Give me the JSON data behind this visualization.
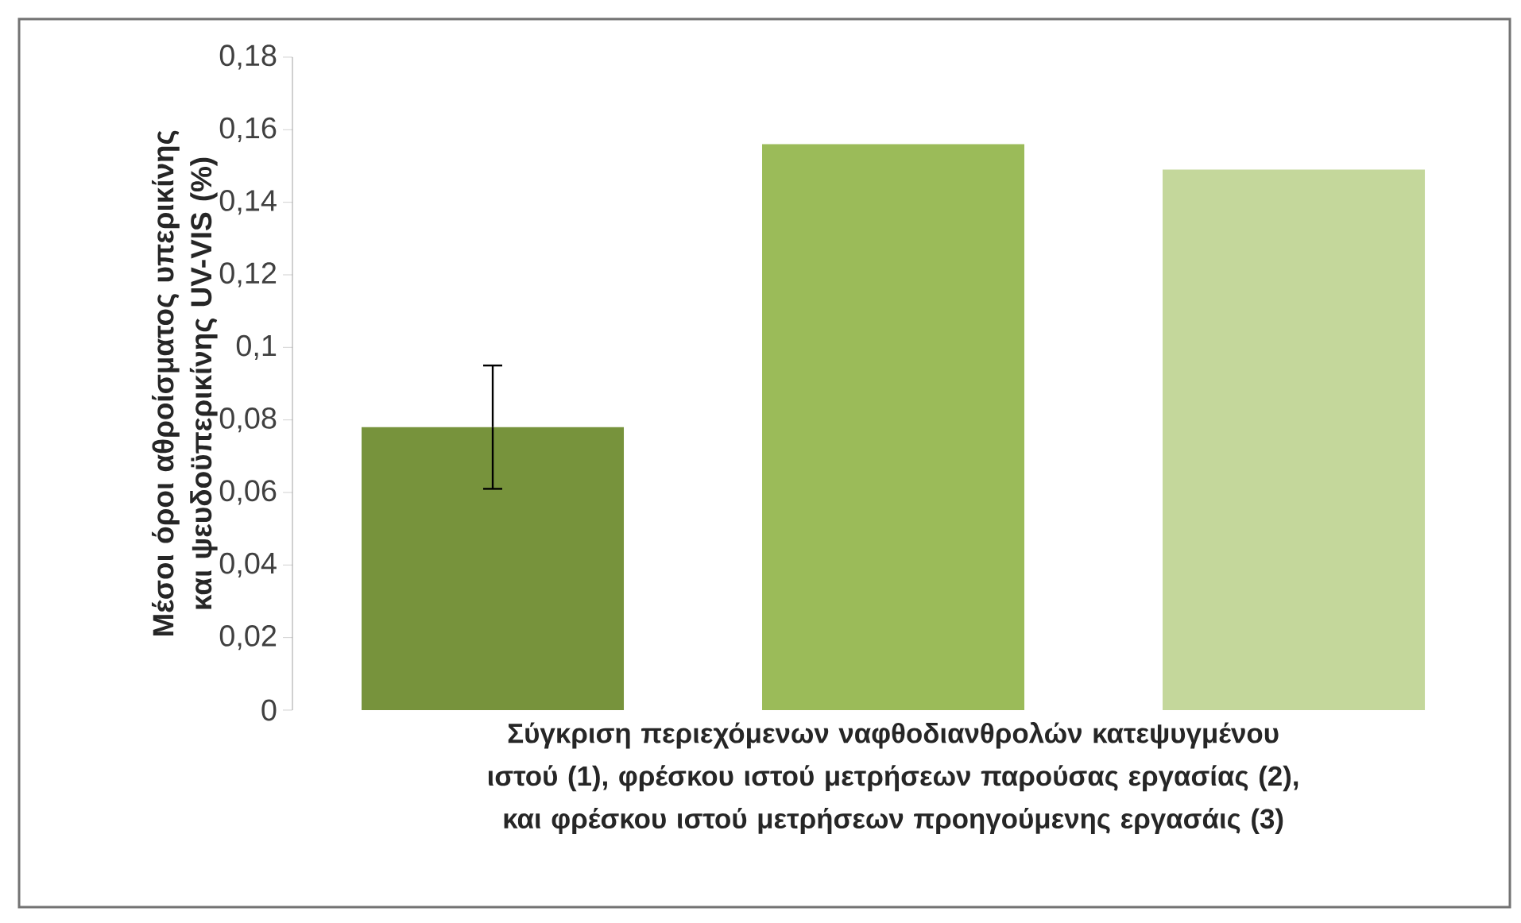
{
  "chart_data": {
    "type": "bar",
    "ylabel": "Μέσοι όροι αθροίσματος υπερικίνης και ψευδοϋπερικίνης UV-VIS (%)",
    "xlabel": "Σύγκριση περιεχόμενων ναφθοδιανθρολών κατεψυγμένου ιστού (1), φρέσκου ιστού μετρήσεων παρούσας εργασίας (2), και φρέσκου ιστού μετρήσεων προηγούμενης εργασάις (3)",
    "categories": [
      null,
      null,
      null
    ],
    "values": [
      0.078,
      0.156,
      0.149
    ],
    "errors": [
      0.017,
      null,
      null
    ],
    "colors": [
      "#77933c",
      "#9bbb59",
      "#c4d79b"
    ],
    "ylim": [
      0,
      0.18
    ],
    "yticks": [
      0,
      {
        "value": 0.02,
        "label": "0,02"
      },
      {
        "value": 0.04,
        "label": "0,04"
      },
      {
        "value": 0.06,
        "label": "0,06"
      },
      {
        "value": 0.08,
        "label": "0,08"
      },
      {
        "value": 0.1,
        "label": "0,1"
      },
      {
        "value": 0.12,
        "label": "0,12"
      },
      {
        "value": 0.14,
        "label": "0,14"
      },
      {
        "value": 0.16,
        "label": "0,16"
      },
      {
        "value": 0.18,
        "label": "0,18"
      }
    ]
  }
}
